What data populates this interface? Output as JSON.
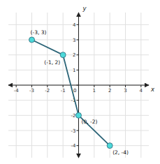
{
  "chart_data": {
    "type": "line",
    "x": [
      -3,
      -1,
      0,
      2
    ],
    "values": [
      3,
      2,
      -2,
      -4
    ],
    "value_labels": [
      "(-3, 3)",
      "(-1, 2)",
      "(0, -2)",
      "(2, -4)"
    ],
    "data_labels": true,
    "color": "#2b6477",
    "marker": "circle",
    "x_label": "x",
    "y_label": "y",
    "xlim": [
      -4.5,
      4.5
    ],
    "ylim": [
      -4.8,
      4.8
    ],
    "xticks": [
      -4,
      -3,
      -2,
      -1,
      0,
      1,
      2,
      3,
      4
    ],
    "yticks": [
      -4,
      -3,
      -2,
      -1,
      0,
      1,
      2,
      3,
      4
    ],
    "grid": true
  }
}
